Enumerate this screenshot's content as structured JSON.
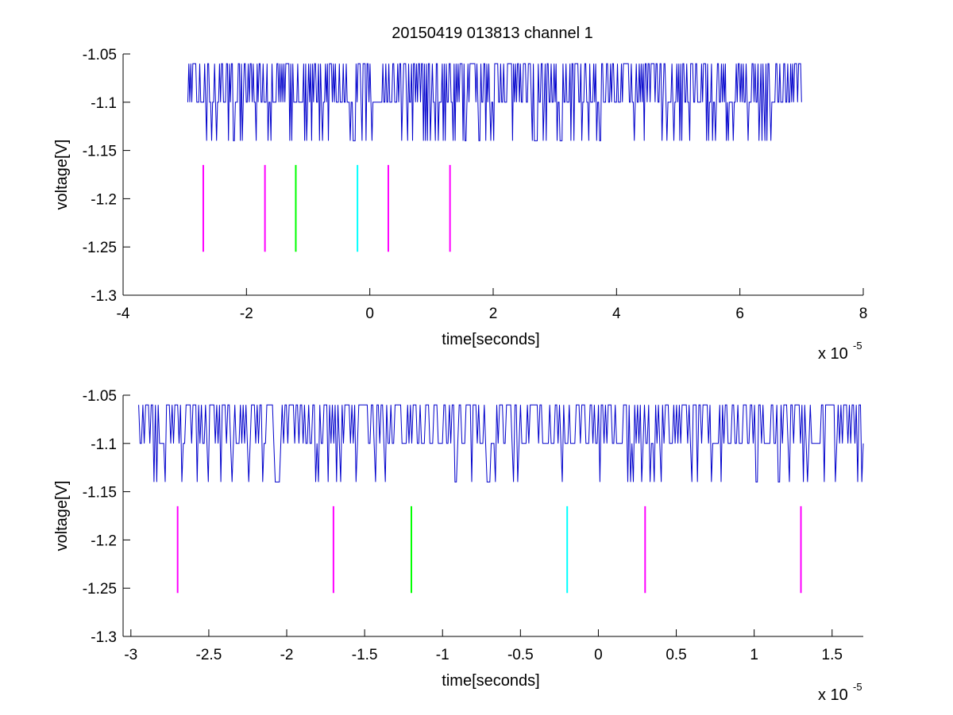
{
  "figure": {
    "background": "#ffffff",
    "title": "20150419 013813 channel 1"
  },
  "chart_data": [
    {
      "type": "line",
      "title": "20150419 013813 channel 1",
      "xlabel": "time[seconds]",
      "ylabel": "voltage[V]",
      "x_multiplier": {
        "base": "x 10",
        "power": "-5"
      },
      "xlim": [
        -4,
        8
      ],
      "ylim": [
        -1.3,
        -1.05
      ],
      "xticks": [
        -4,
        -2,
        0,
        2,
        4,
        6,
        8
      ],
      "xtick_labels": [
        "-4",
        "-2",
        "0",
        "2",
        "4",
        "6",
        "8"
      ],
      "yticks": [
        -1.3,
        -1.25,
        -1.2,
        -1.15,
        -1.1,
        -1.05
      ],
      "ytick_labels": [
        "-1.3",
        "-1.25",
        "-1.2",
        "-1.15",
        "-1.1",
        "-1.05"
      ],
      "grid": false,
      "series": [
        {
          "kind": "noise-signal",
          "color": "#0000cc",
          "x_start": -2.95,
          "x_end": 7.0,
          "levels": [
            -1.14,
            -1.1,
            -1.06
          ],
          "baseline": -1.1
        }
      ],
      "markers": [
        {
          "x": -2.7,
          "color": "#ff00ff",
          "y_top": -1.165,
          "y_bottom": -1.255
        },
        {
          "x": -1.7,
          "color": "#ff00ff",
          "y_top": -1.165,
          "y_bottom": -1.255
        },
        {
          "x": -1.2,
          "color": "#00ff00",
          "y_top": -1.165,
          "y_bottom": -1.255
        },
        {
          "x": -0.2,
          "color": "#00ffff",
          "y_top": -1.165,
          "y_bottom": -1.255
        },
        {
          "x": 0.3,
          "color": "#ff00ff",
          "y_top": -1.165,
          "y_bottom": -1.255
        },
        {
          "x": 1.3,
          "color": "#ff00ff",
          "y_top": -1.165,
          "y_bottom": -1.255
        }
      ]
    },
    {
      "type": "line",
      "title": "",
      "xlabel": "time[seconds]",
      "ylabel": "voltage[V]",
      "x_multiplier": {
        "base": "x 10",
        "power": "-5"
      },
      "xlim": [
        -3.05,
        1.7
      ],
      "ylim": [
        -1.3,
        -1.05
      ],
      "xticks": [
        -3,
        -2.5,
        -2,
        -1.5,
        -1,
        -0.5,
        0,
        0.5,
        1,
        1.5
      ],
      "xtick_labels": [
        "-3",
        "-2.5",
        "-2",
        "-1.5",
        "-1",
        "-0.5",
        "0",
        "0.5",
        "1",
        "1.5"
      ],
      "yticks": [
        -1.3,
        -1.25,
        -1.2,
        -1.15,
        -1.1,
        -1.05
      ],
      "ytick_labels": [
        "-1.3",
        "-1.25",
        "-1.2",
        "-1.15",
        "-1.1",
        "-1.05"
      ],
      "grid": false,
      "series": [
        {
          "kind": "noise-signal",
          "color": "#0000cc",
          "x_start": -2.95,
          "x_end": 1.7,
          "levels": [
            -1.14,
            -1.1,
            -1.06
          ],
          "baseline": -1.1
        }
      ],
      "markers": [
        {
          "x": -2.7,
          "color": "#ff00ff",
          "y_top": -1.165,
          "y_bottom": -1.255
        },
        {
          "x": -1.7,
          "color": "#ff00ff",
          "y_top": -1.165,
          "y_bottom": -1.255
        },
        {
          "x": -1.2,
          "color": "#00ff00",
          "y_top": -1.165,
          "y_bottom": -1.255
        },
        {
          "x": -0.2,
          "color": "#00ffff",
          "y_top": -1.165,
          "y_bottom": -1.255
        },
        {
          "x": 0.3,
          "color": "#ff00ff",
          "y_top": -1.165,
          "y_bottom": -1.255
        },
        {
          "x": 1.3,
          "color": "#ff00ff",
          "y_top": -1.165,
          "y_bottom": -1.255
        }
      ]
    }
  ]
}
